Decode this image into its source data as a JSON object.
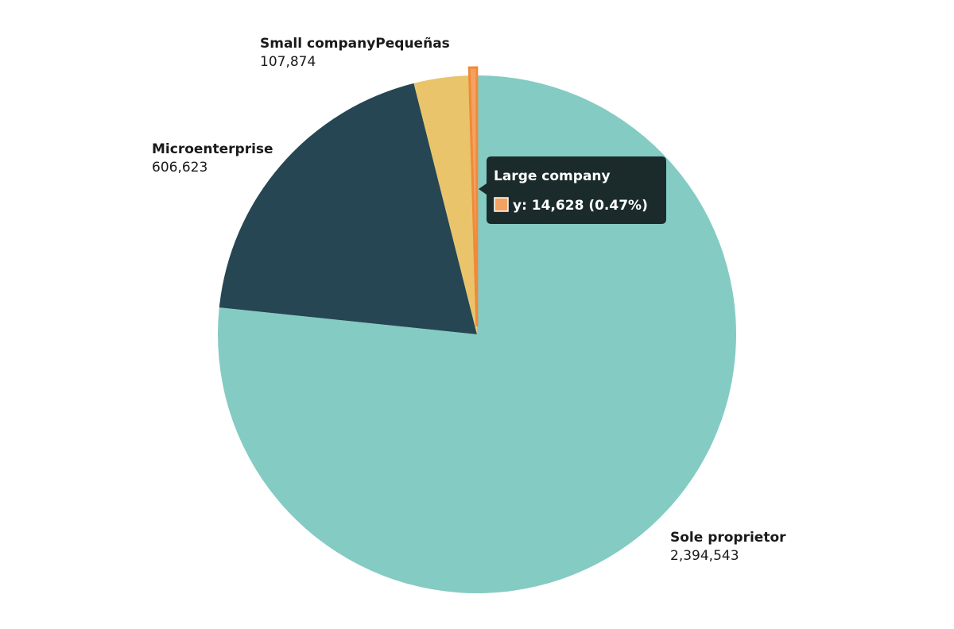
{
  "chart_data": {
    "type": "pie",
    "title": "",
    "series": [
      {
        "name": "Sole proprietor",
        "value": 2394543,
        "value_label": "2,394,543",
        "color": "#84cbc3"
      },
      {
        "name": "Microenterprise",
        "value": 606623,
        "value_label": "606,623",
        "color": "#264653"
      },
      {
        "name": "Small companyPequeñas",
        "value": 107874,
        "value_label": "107,874",
        "color": "#e9c46a"
      },
      {
        "name": "Large company",
        "value": 14628,
        "value_label": "14,628",
        "color": "#f4a261"
      }
    ]
  },
  "tooltip": {
    "title": "Large company",
    "text": "y: 14,628 (0.47%)",
    "swatch_color": "#f4a261",
    "background": "#1b2b2c",
    "highlight_color": "#f08a3a"
  }
}
